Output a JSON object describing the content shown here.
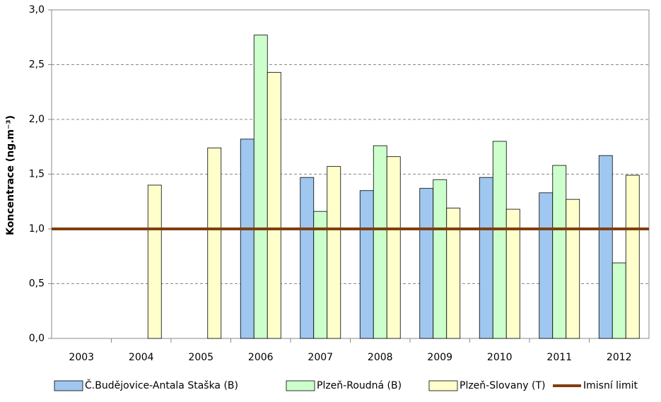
{
  "chart_data": {
    "type": "bar",
    "y_label": "Koncentrace (ng.m⁻³)",
    "categories": [
      "2003",
      "2004",
      "2005",
      "2006",
      "2007",
      "2008",
      "2009",
      "2010",
      "2011",
      "2012"
    ],
    "series": [
      {
        "name": "Č.Budějovice-Antala Staška (B)",
        "color": "#9fc7f0",
        "values": [
          null,
          null,
          null,
          1.82,
          1.47,
          1.35,
          1.37,
          1.47,
          1.33,
          1.67
        ]
      },
      {
        "name": "Plzeň-Roudná (B)",
        "color": "#ccffcc",
        "values": [
          null,
          null,
          null,
          2.77,
          1.16,
          1.76,
          1.45,
          1.8,
          1.58,
          0.69
        ]
      },
      {
        "name": "Plzeň-Slovany (T)",
        "color": "#ffffcc",
        "values": [
          null,
          1.4,
          1.74,
          2.43,
          1.57,
          1.66,
          1.19,
          1.18,
          1.27,
          1.49
        ]
      }
    ],
    "limit": {
      "name": "Imisní limit",
      "value": 1.0,
      "color": "#7f3f0f"
    },
    "ylim": [
      0,
      3
    ],
    "yticks": [
      {
        "value": 0,
        "label": "0,0"
      },
      {
        "value": 0.5,
        "label": "0,5"
      },
      {
        "value": 1,
        "label": "1,0"
      },
      {
        "value": 1.5,
        "label": "1,5"
      },
      {
        "value": 2,
        "label": "2,0"
      },
      {
        "value": 2.5,
        "label": "2,5"
      },
      {
        "value": 3,
        "label": "3,0"
      }
    ],
    "grid": true
  }
}
